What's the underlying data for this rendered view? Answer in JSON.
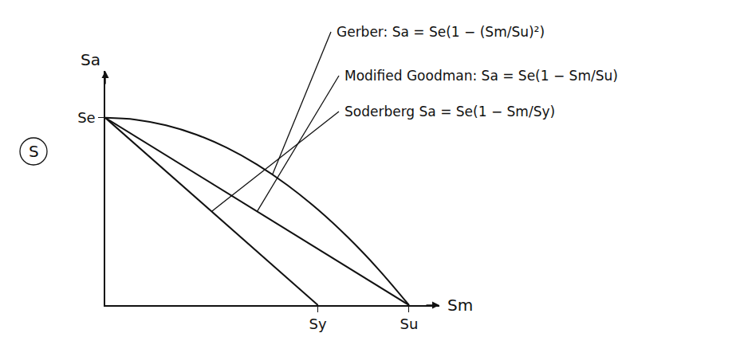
{
  "chart_data": {
    "type": "line",
    "x_label": "Sm",
    "y_label": "Sa",
    "xlim": [
      0,
      1.1
    ],
    "ylim": [
      0,
      1.25
    ],
    "xticks": [
      {
        "value": 0.7,
        "label": "Sy"
      },
      {
        "value": 1,
        "label": "Su"
      }
    ],
    "yticks": [
      {
        "value": 1,
        "label": "Se"
      }
    ],
    "grid": false,
    "circled_label": "S",
    "series": [
      {
        "label": "Gerber: Sa = Se(1 − (Sm/Su)²)",
        "color": "#111111",
        "line_style": "solid",
        "x": [
          0,
          0.1,
          0.2,
          0.3,
          0.4,
          0.5,
          0.6,
          0.7,
          0.8,
          0.9,
          1.0
        ],
        "values": [
          1,
          0.99,
          0.96,
          0.91,
          0.84,
          0.75,
          0.64,
          0.51,
          0.36,
          0.19,
          0
        ]
      },
      {
        "label": "Modified Goodman: Sa = Se(1 − Sm/Su)",
        "color": "#111111",
        "line_style": "solid",
        "x": [
          0,
          1.0
        ],
        "values": [
          1,
          0
        ]
      },
      {
        "label": "Soderberg Sa = Se(1 − Sm/Sy)",
        "color": "#111111",
        "line_style": "solid",
        "x": [
          0,
          0.7
        ],
        "values": [
          1,
          0
        ]
      }
    ]
  }
}
